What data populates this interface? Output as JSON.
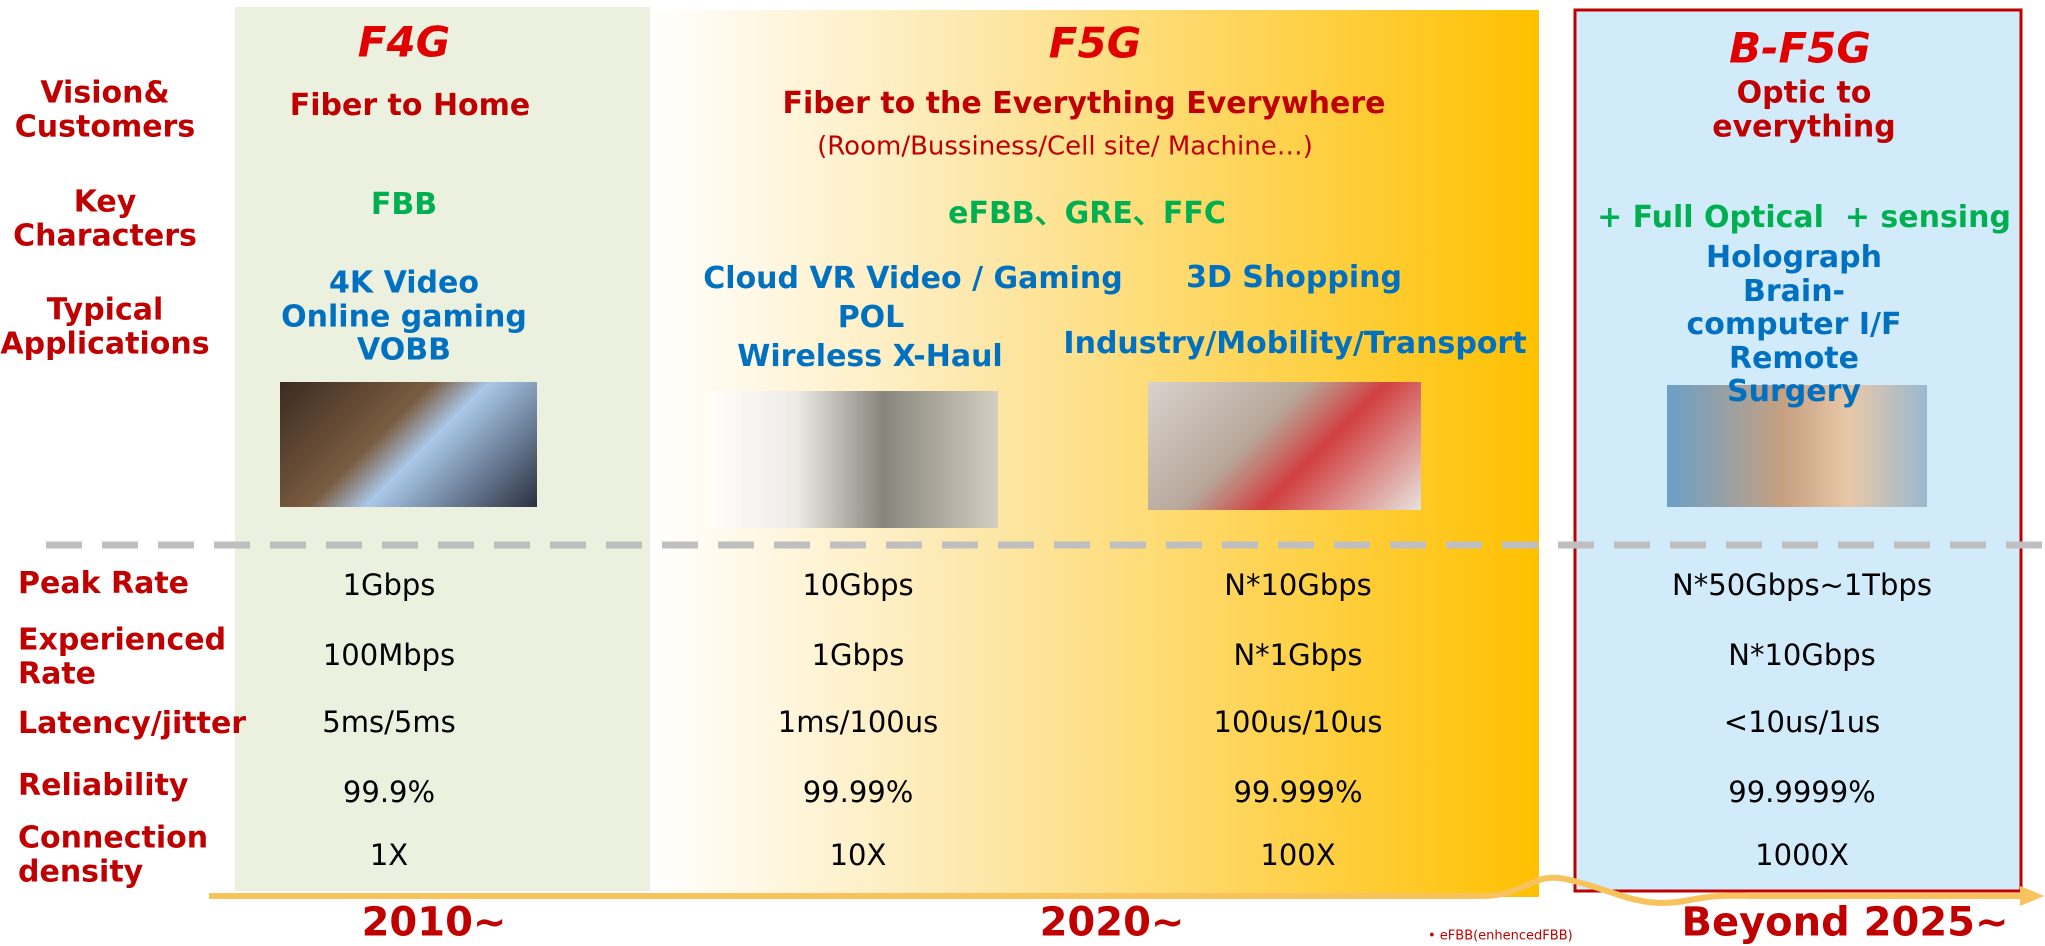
{
  "row_labels": {
    "vision": "Vision&\nCustomers",
    "characters": "Key\nCharacters",
    "applications": "Typical\nApplications"
  },
  "metric_labels": [
    "Peak Rate",
    "Experienced\nRate",
    "Latency/jitter",
    "Reliability",
    "Connection\ndensity"
  ],
  "generations": [
    {
      "title": "F4G",
      "vision": "Fiber to Home",
      "characters": "FBB",
      "applications": [
        "4K Video\nOnline gaming\nVOBB"
      ]
    },
    {
      "title": "F5G",
      "vision": "Fiber to the Everything Everywhere",
      "vision_detail": "(Room/Bussiness/Cell site/ Machine…)",
      "characters": "eFBB、GRE、FFC",
      "applications": [
        "Cloud VR Video / Gaming",
        "POL",
        "Wireless X-Haul",
        "3D Shopping",
        "Industry/Mobility/Transport"
      ]
    },
    {
      "title": "B-F5G",
      "vision": "Optic to everything",
      "characters": "+ Full Optical  + sensing",
      "applications": [
        "Holograph\nBrain-computer I/F\nRemote Surgery"
      ]
    }
  ],
  "metrics": [
    [
      "1Gbps",
      "10Gbps",
      "N*10Gbps",
      "N*50Gbps~1Tbps"
    ],
    [
      "100Mbps",
      "1Gbps",
      "N*1Gbps",
      "N*10Gbps"
    ],
    [
      "5ms/5ms",
      "1ms/100us",
      "100us/10us",
      "<10us/1us"
    ],
    [
      "99.9%",
      "99.99%",
      "99.999%",
      "99.9999%"
    ],
    [
      "1X",
      "10X",
      "100X",
      "1000X"
    ]
  ],
  "timeline": [
    "2010~",
    "2020~",
    "Beyond 2025~"
  ],
  "footnote": "• eFBB(enhencedFBB)"
}
